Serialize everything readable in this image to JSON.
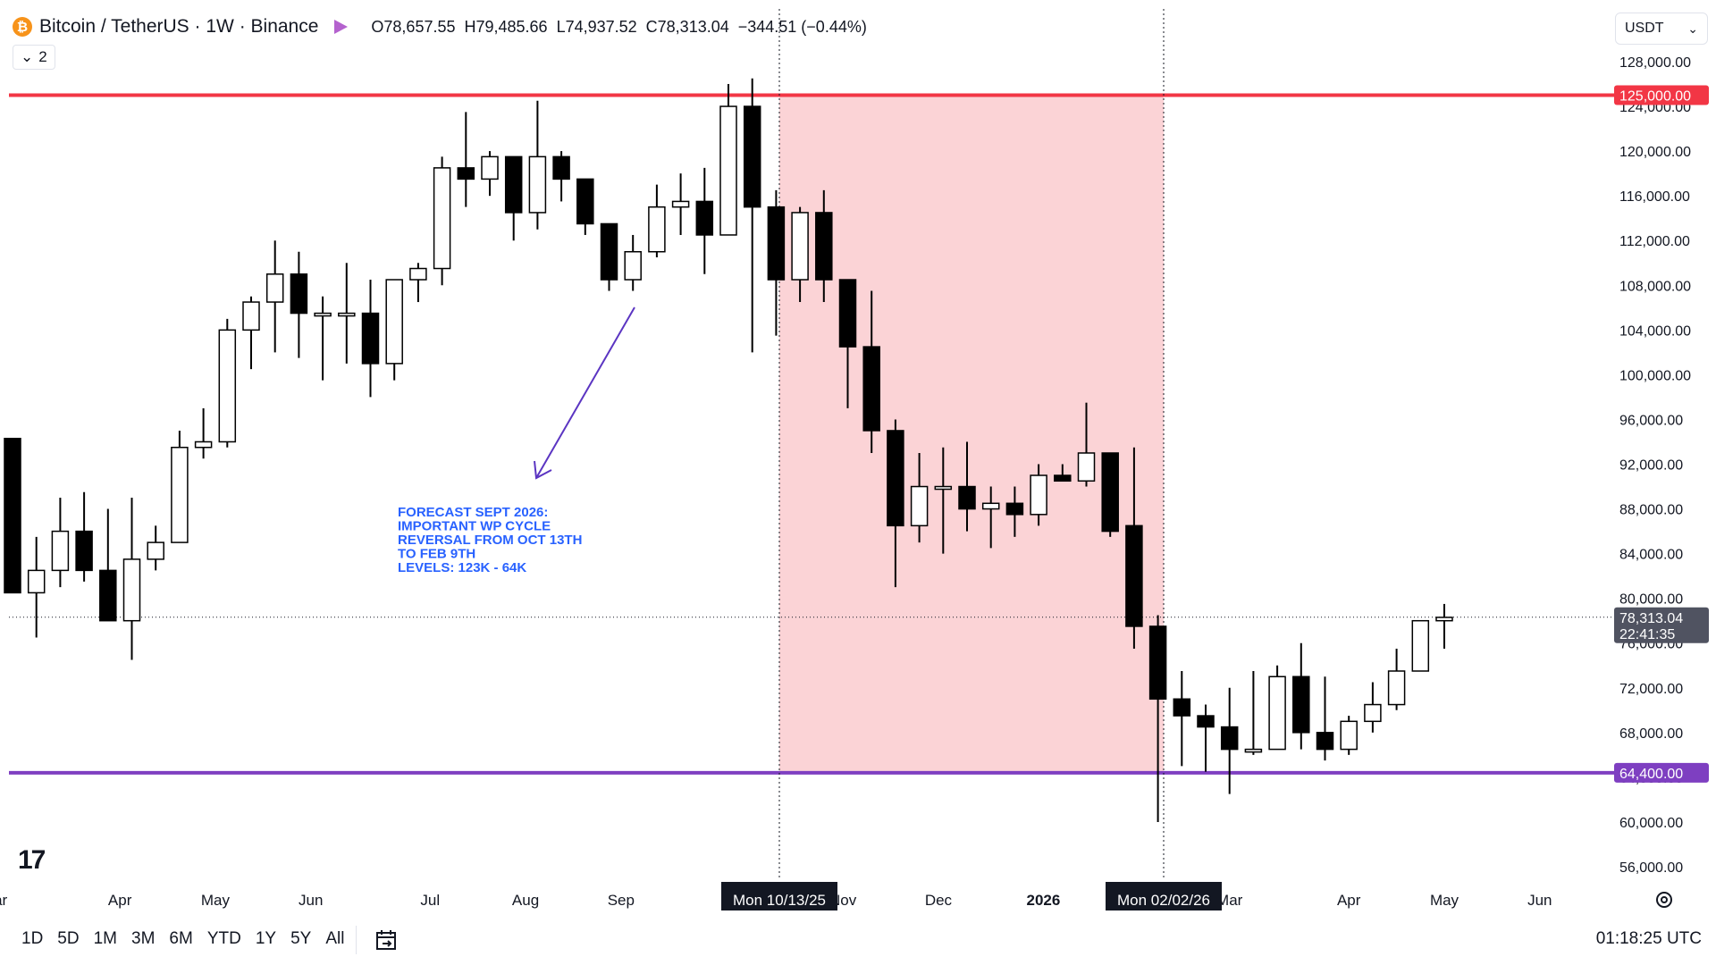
{
  "header": {
    "symbol": "Bitcoin / TetherUS · 1W · Binance",
    "open": "O78,657.55",
    "high": "H79,485.66",
    "low": "L74,937.52",
    "close": "C78,313.04",
    "change": "−344.51 (−0.44%)",
    "indicator_count": "2"
  },
  "currency": {
    "label": "USDT"
  },
  "range_buttons": [
    "1D",
    "5D",
    "1M",
    "3M",
    "6M",
    "YTD",
    "1Y",
    "5Y",
    "All"
  ],
  "clock": "01:18:25 UTC",
  "colors": {
    "resistance": "#f23645",
    "support": "#7e3fc1",
    "zone": "#fbd3d6",
    "arrow": "#5b35c2",
    "note": "#2962ff",
    "up_candle": "#ffffff",
    "down_candle": "#000000"
  },
  "chart_data": {
    "type": "candlestick",
    "price_axis": {
      "min": 54000,
      "max": 130000,
      "ticks": [
        "128,000.00",
        "124,000.00",
        "120,000.00",
        "116,000.00",
        "112,000.00",
        "108,000.00",
        "104,000.00",
        "100,000.00",
        "96,000.00",
        "92,000.00",
        "88,000.00",
        "84,000.00",
        "80,000.00",
        "76,000.00",
        "72,000.00",
        "68,000.00",
        "64,000.00",
        "60,000.00",
        "56,000.00"
      ],
      "tick_values": [
        128000,
        124000,
        120000,
        116000,
        112000,
        108000,
        104000,
        100000,
        96000,
        92000,
        88000,
        84000,
        80000,
        76000,
        72000,
        68000,
        64000,
        60000,
        56000
      ]
    },
    "time_axis": [
      {
        "label": "ar",
        "week": -0.5
      },
      {
        "label": "Apr",
        "week": 4.5
      },
      {
        "label": "May",
        "week": 8.5
      },
      {
        "label": "Jun",
        "week": 12.5
      },
      {
        "label": "Jul",
        "week": 17.5
      },
      {
        "label": "Aug",
        "week": 21.5
      },
      {
        "label": "Sep",
        "week": 25.5
      },
      {
        "label": "Nov",
        "week": 34.8
      },
      {
        "label": "Dec",
        "week": 38.8
      },
      {
        "label": "2026",
        "week": 43.2,
        "bold": true
      },
      {
        "label": "Mar",
        "week": 51.0
      },
      {
        "label": "Apr",
        "week": 56.0
      },
      {
        "label": "May",
        "week": 60.0
      },
      {
        "label": "Jun",
        "week": 64.0
      }
    ],
    "candles": [
      [
        94300,
        94300,
        80500,
        80500
      ],
      [
        80500,
        85500,
        76500,
        82500
      ],
      [
        82500,
        89000,
        81000,
        86000
      ],
      [
        86000,
        89500,
        81500,
        82500
      ],
      [
        82500,
        88000,
        78000,
        78000
      ],
      [
        78000,
        89000,
        74500,
        83500
      ],
      [
        83500,
        86500,
        82500,
        85000
      ],
      [
        85000,
        95000,
        85000,
        93500
      ],
      [
        93500,
        97000,
        92500,
        94000
      ],
      [
        94000,
        105000,
        93500,
        104000
      ],
      [
        104000,
        107000,
        100500,
        106500
      ],
      [
        106500,
        112000,
        102000,
        109000
      ],
      [
        109000,
        111000,
        101500,
        105500
      ],
      [
        105500,
        107000,
        99500,
        105500
      ],
      [
        105500,
        110000,
        101000,
        105500
      ],
      [
        105500,
        108500,
        98000,
        101000
      ],
      [
        101000,
        108500,
        99500,
        108500
      ],
      [
        108500,
        110000,
        106500,
        109500
      ],
      [
        109500,
        119500,
        108000,
        118500
      ],
      [
        118500,
        123500,
        115000,
        117500
      ],
      [
        117500,
        120000,
        116000,
        119500
      ],
      [
        119500,
        119500,
        112000,
        114500
      ],
      [
        114500,
        124500,
        113000,
        119500
      ],
      [
        119500,
        120000,
        115500,
        117500
      ],
      [
        117500,
        117500,
        112500,
        113500
      ],
      [
        113500,
        113500,
        107500,
        108500
      ],
      [
        108500,
        112500,
        107500,
        111000
      ],
      [
        111000,
        117000,
        110500,
        115000
      ],
      [
        115000,
        118000,
        112500,
        115500
      ],
      [
        115500,
        118500,
        109000,
        112500
      ],
      [
        112500,
        126000,
        112500,
        124000
      ],
      [
        124000,
        126500,
        102000,
        115000
      ],
      [
        115000,
        116500,
        103500,
        108500
      ],
      [
        108500,
        115000,
        106500,
        114500
      ],
      [
        114500,
        116500,
        106500,
        108500
      ],
      [
        108500,
        108500,
        97000,
        102500
      ],
      [
        102500,
        107500,
        93000,
        95000
      ],
      [
        95000,
        96000,
        81000,
        86500
      ],
      [
        86500,
        93000,
        85000,
        90000
      ],
      [
        90000,
        93500,
        84000,
        90000
      ],
      [
        90000,
        94000,
        86000,
        88000
      ],
      [
        88000,
        90000,
        84500,
        88500
      ],
      [
        88500,
        90000,
        85500,
        87500
      ],
      [
        87500,
        92000,
        86500,
        91000
      ],
      [
        91000,
        92000,
        90500,
        90500
      ],
      [
        90500,
        97500,
        90000,
        93000
      ],
      [
        93000,
        93000,
        85500,
        86000
      ],
      [
        86500,
        93500,
        75500,
        77500
      ],
      [
        77500,
        78500,
        60000,
        71000
      ],
      [
        71000,
        73500,
        65000,
        69500
      ],
      [
        69500,
        70500,
        64500,
        68500
      ],
      [
        68500,
        72000,
        62500,
        66500
      ],
      [
        66500,
        73500,
        66000,
        66500
      ],
      [
        66500,
        74000,
        66500,
        73000
      ],
      [
        73000,
        76000,
        66500,
        68000
      ],
      [
        68000,
        73000,
        65500,
        66500
      ],
      [
        66500,
        69500,
        66000,
        69000
      ],
      [
        69000,
        72500,
        68000,
        70500
      ],
      [
        70500,
        75500,
        70000,
        73500
      ],
      [
        73500,
        78000,
        73500,
        78000
      ],
      [
        78000,
        79500,
        75500,
        78300
      ]
    ],
    "horizontal_levels": [
      {
        "value": 125000,
        "label": "125,000.00",
        "color": "#f23645"
      },
      {
        "value": 64400,
        "label": "64,400.00",
        "color": "#7e3fc1"
      }
    ],
    "last_price": {
      "value": 78313.04,
      "label": "78,313.04",
      "countdown": "22:41:35"
    },
    "zone": {
      "start_label": "Mon 10/13/25",
      "end_label": "Mon 02/02/26",
      "top": 125000,
      "bottom": 64400
    },
    "annotation": [
      "FORECAST SEPT 2026:",
      "IMPORTANT WP CYCLE",
      "REVERSAL FROM OCT 13TH",
      "TO FEB 9TH",
      "LEVELS: 123K - 64K"
    ]
  }
}
